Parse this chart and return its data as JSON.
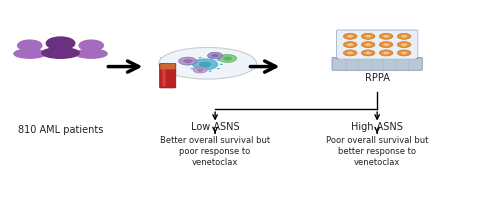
{
  "bg_color": "#ffffff",
  "fig_width": 5.0,
  "fig_height": 2.21,
  "dpi": 100,
  "people_label": "810 AML patients",
  "rppa_label": "RPPA",
  "low_asns_label": "Low ASNS",
  "high_asns_label": "High ASNS",
  "low_outcome_label": "Better overall survival but\npoor response to\nvenetoclax",
  "high_outcome_label": "Poor overall survival but\nbetter response to\nvenetoclax",
  "purple_dark": "#6b3080",
  "purple_light": "#a56bbf",
  "orange_dot": "#e8923a",
  "orange_center": "#f5c890",
  "blood_red": "#bb2222",
  "blood_cap": "#cc6633",
  "cell_bg": "#eef4fa",
  "cell_border": "#cccccc",
  "plate_bg": "#dde5f0",
  "slide_bg": "#b8c8d8",
  "slide_lines": "#99aabc",
  "text_color": "#222222",
  "font_size_label": 7,
  "font_size_small": 6,
  "font_size_rppa": 7,
  "font_size_asns": 7
}
